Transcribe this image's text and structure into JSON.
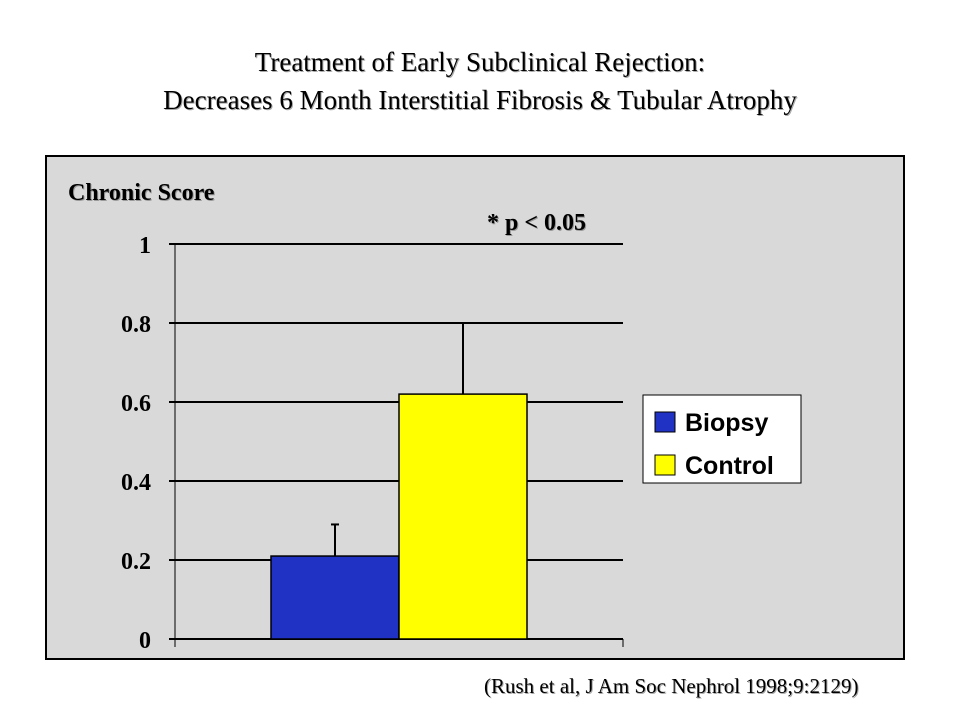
{
  "title": {
    "line1": "Treatment of Early Subclinical Rejection:",
    "line2": "Decreases 6 Month Interstitial Fibrosis & Tubular Atrophy"
  },
  "citation": "(Rush et al, J Am Soc Nephrol 1998;9:2129)",
  "chart_data": {
    "type": "bar",
    "ylabel": "Chronic Score",
    "annotation": "* p < 0.05",
    "ylim": [
      0,
      1
    ],
    "yticks": [
      "0",
      "0.2",
      "0.4",
      "0.6",
      "0.8",
      "1"
    ],
    "grid": true,
    "legend_position": "right",
    "series": [
      {
        "name": "Biopsy",
        "value": 0.21,
        "error": 0.08,
        "color": "#1f32c4"
      },
      {
        "name": "Control",
        "value": 0.62,
        "error": 0.18,
        "color": "#ffff00"
      }
    ]
  }
}
